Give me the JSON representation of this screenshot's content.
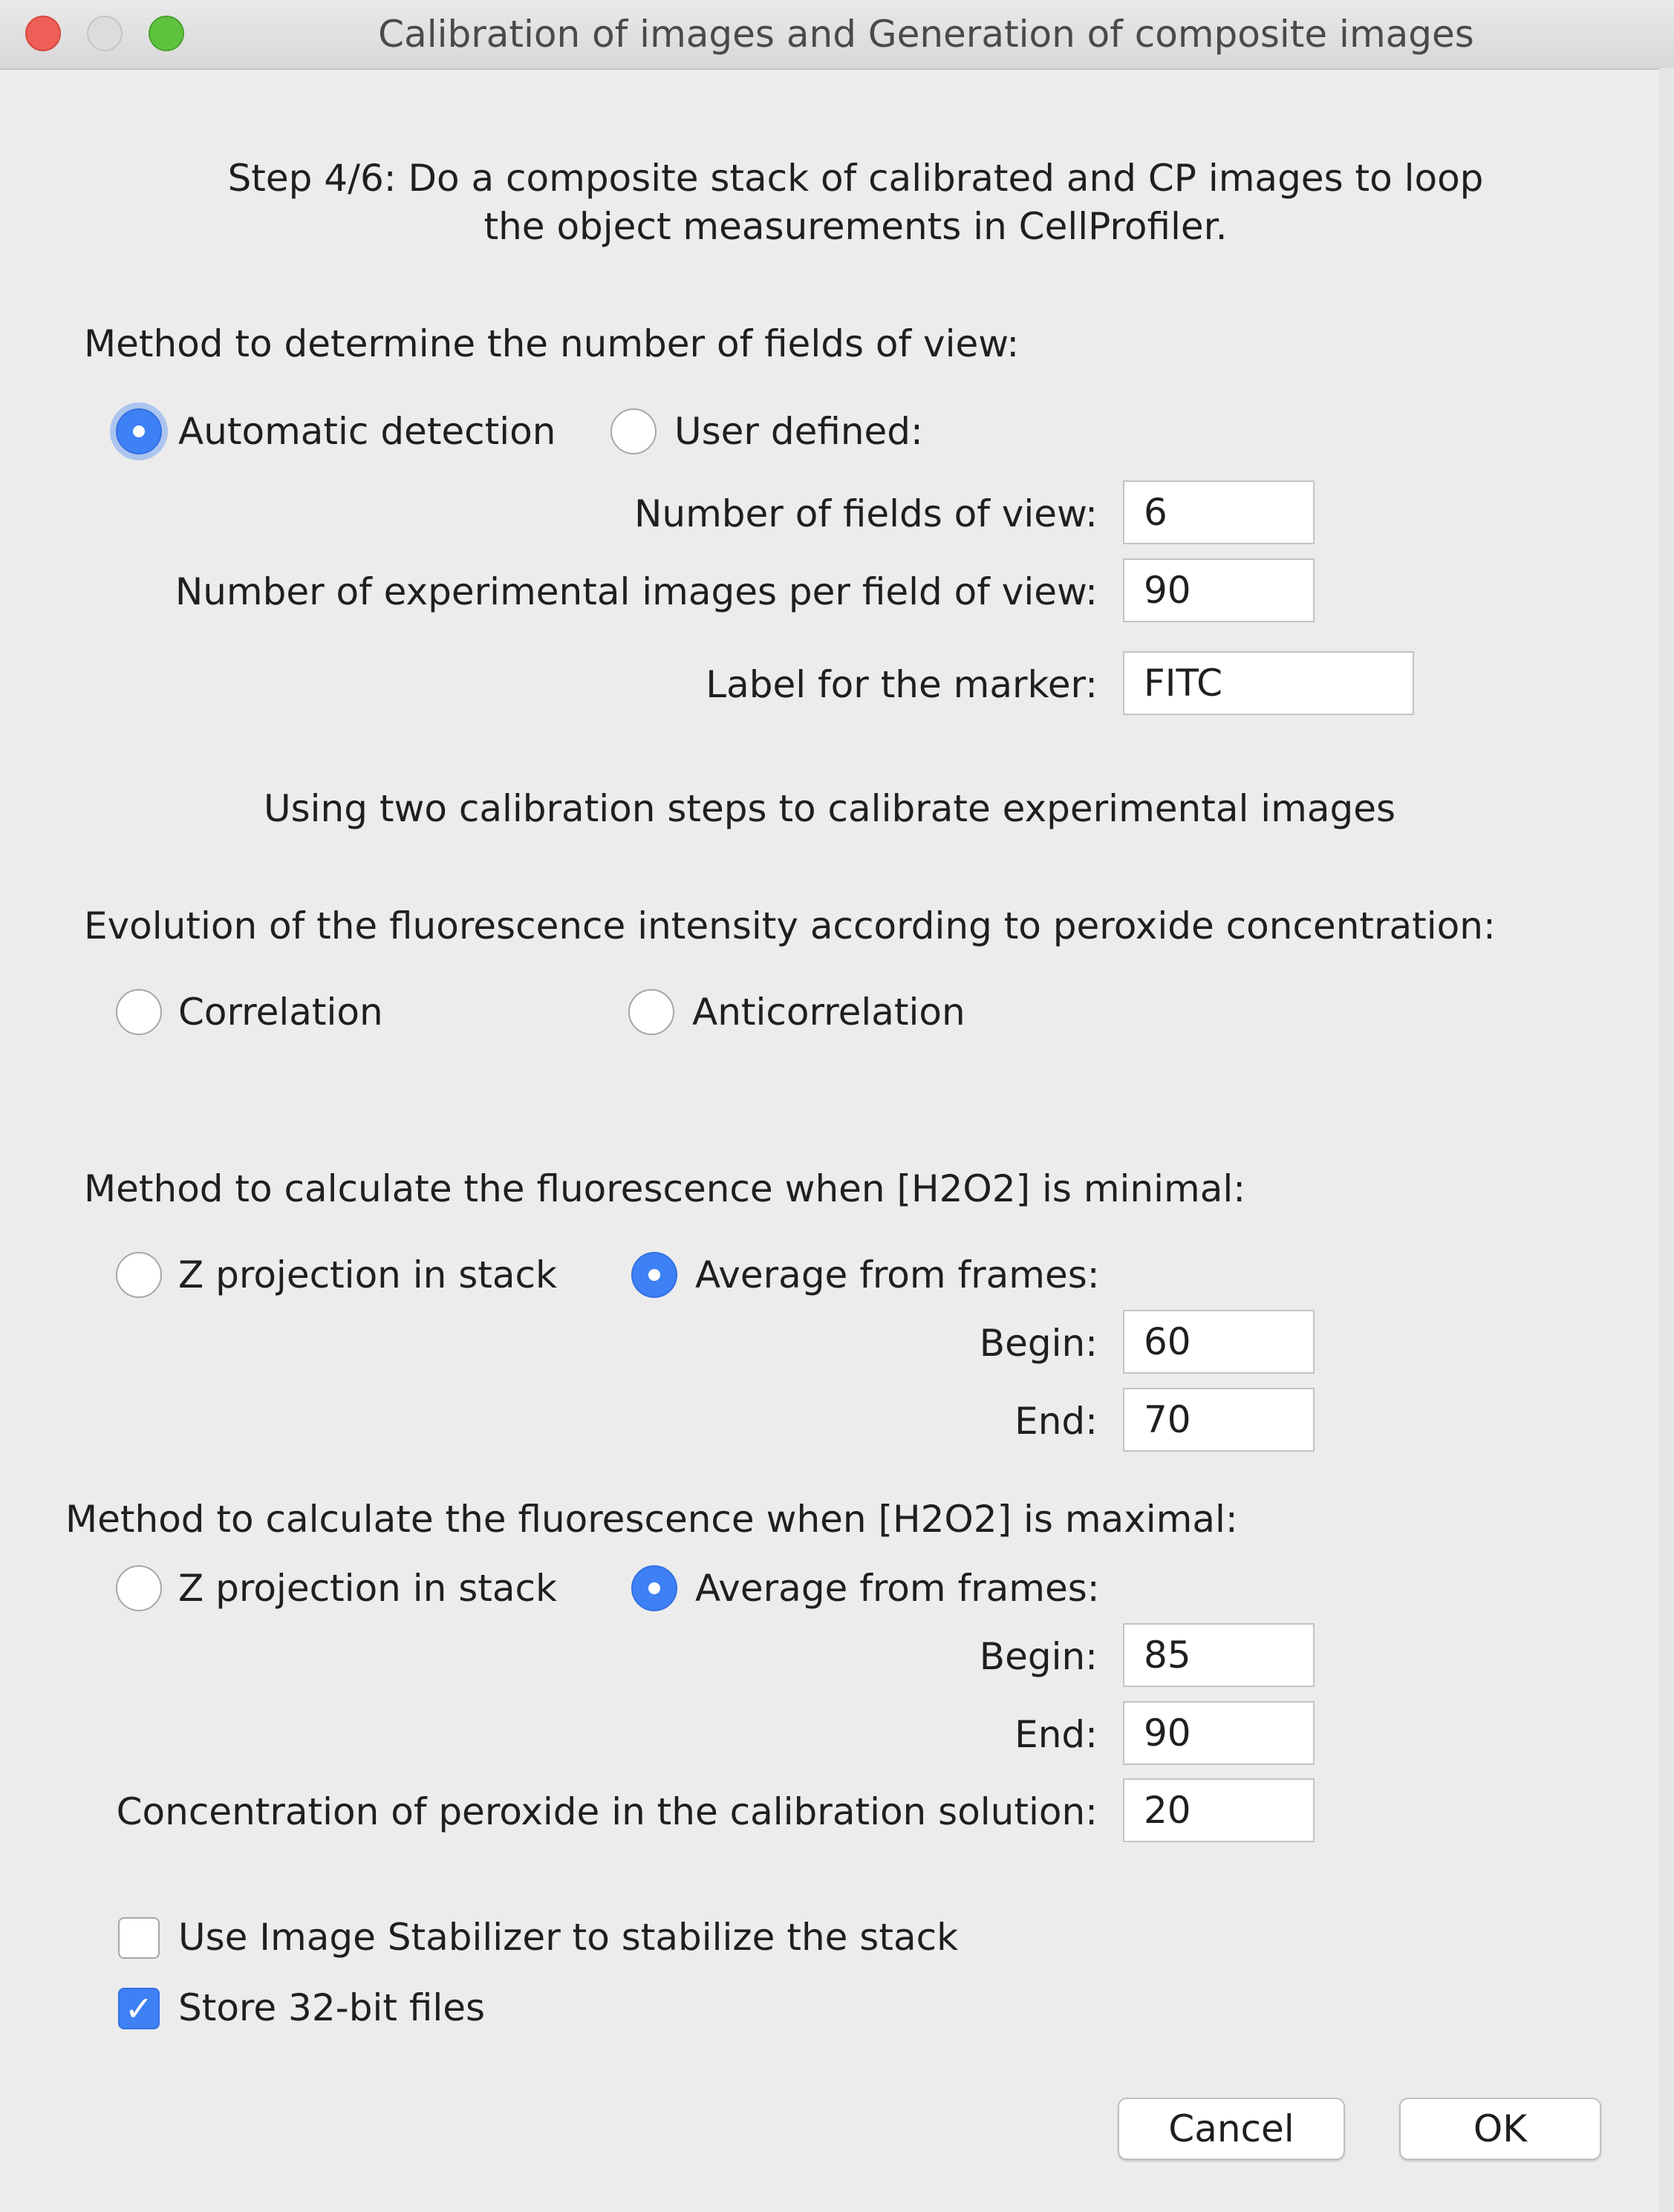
{
  "window": {
    "title": "Calibration of images and Generation of composite images"
  },
  "instructions": {
    "line1": "Step 4/6: Do a composite stack of calibrated and CP images to loop",
    "line2": "the object measurements in CellProfiler."
  },
  "fields_of_view": {
    "heading": "Method to determine the number of fields of view:",
    "auto_label": "Automatic detection",
    "auto_selected": true,
    "user_label": "User defined:",
    "user_selected": false,
    "num_fields_label": "Number of fields of view:",
    "num_fields_value": "6",
    "images_per_field_label": "Number of experimental images per field of view:",
    "images_per_field_value": "90",
    "marker_label": "Label for the marker:",
    "marker_value": "FITC"
  },
  "calibration_note": "Using two calibration steps to calibrate experimental images",
  "evolution": {
    "heading": "Evolution of the fluorescence intensity according to peroxide concentration:",
    "correlation_label": "Correlation",
    "anticorrelation_label": "Anticorrelation"
  },
  "minimal": {
    "heading": "Method to calculate the fluorescence when [H2O2] is minimal:",
    "zproj_label": "Z projection in stack",
    "average_label": "Average from frames:",
    "average_selected": true,
    "begin_label": "Begin:",
    "begin_value": "60",
    "end_label": "End:",
    "end_value": "70"
  },
  "maximal": {
    "heading": "Method to calculate the fluorescence when [H2O2] is maximal:",
    "zproj_label": "Z projection in stack",
    "average_label": "Average from frames:",
    "average_selected": true,
    "begin_label": "Begin:",
    "begin_value": "85",
    "end_label": "End:",
    "end_value": "90"
  },
  "concentration": {
    "label": "Concentration of peroxide in the calibration solution:",
    "value": "20"
  },
  "options": {
    "stabilizer_label": "Use Image Stabilizer to stabilize the stack",
    "stabilizer_checked": false,
    "store32_label": "Store 32-bit files",
    "store32_checked": true,
    "check_glyph": "✓"
  },
  "buttons": {
    "cancel": "Cancel",
    "ok": "OK"
  },
  "colors": {
    "accent": "#3d81f5",
    "close": "#ee5f57",
    "maximize": "#5fc23f"
  }
}
